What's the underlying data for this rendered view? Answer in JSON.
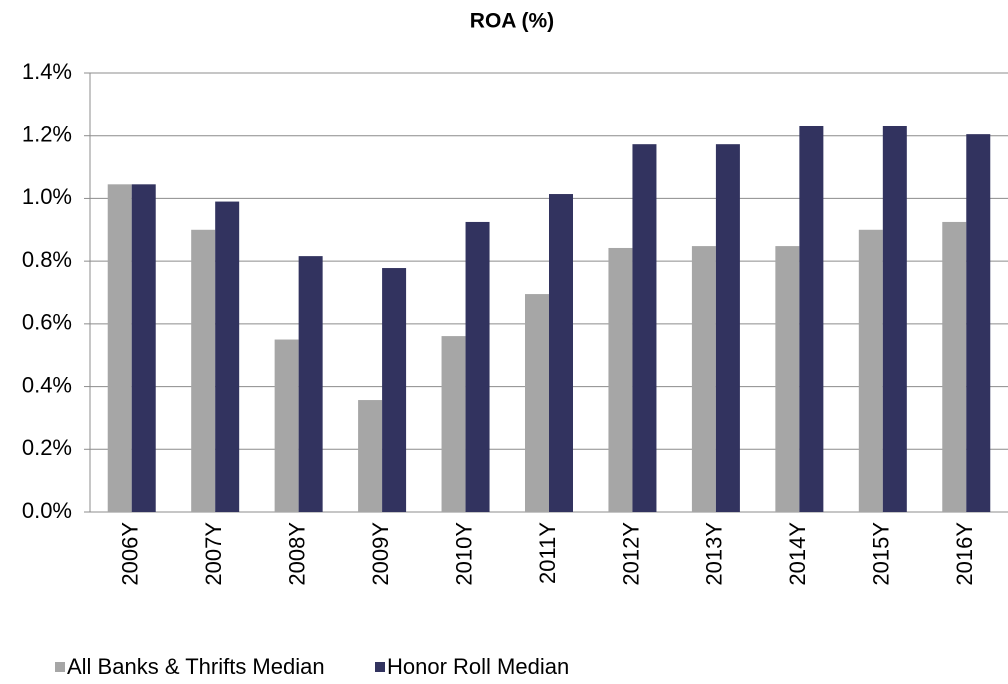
{
  "chart_data": {
    "type": "bar",
    "title": "ROA (%)",
    "categories": [
      "2006Y",
      "2007Y",
      "2008Y",
      "2009Y",
      "2010Y",
      "2011Y",
      "2012Y",
      "2013Y",
      "2014Y",
      "2015Y",
      "2016Y"
    ],
    "series": [
      {
        "name": "All Banks & Thrifts Median",
        "color": "#a6a6a6",
        "values": [
          1.045,
          0.9,
          0.55,
          0.357,
          0.561,
          0.695,
          0.842,
          0.848,
          0.848,
          0.9,
          0.925
        ]
      },
      {
        "name": "Honor Roll Median",
        "color": "#32335f",
        "values": [
          1.045,
          0.99,
          0.816,
          0.778,
          0.925,
          1.014,
          1.173,
          1.173,
          1.231,
          1.231,
          1.205
        ]
      }
    ],
    "ylim": [
      0,
      1.4
    ],
    "yticks": [
      {
        "value": 0,
        "label": "0.0%"
      },
      {
        "value": 0.2,
        "label": "0.2%"
      },
      {
        "value": 0.4,
        "label": "0.4%"
      },
      {
        "value": 0.6,
        "label": "0.6%"
      },
      {
        "value": 0.8,
        "label": "0.8%"
      },
      {
        "value": 1.0,
        "label": "1.0%"
      },
      {
        "value": 1.2,
        "label": "1.2%"
      },
      {
        "value": 1.4,
        "label": "1.4%"
      }
    ],
    "grid": true,
    "legend": "bottom"
  }
}
